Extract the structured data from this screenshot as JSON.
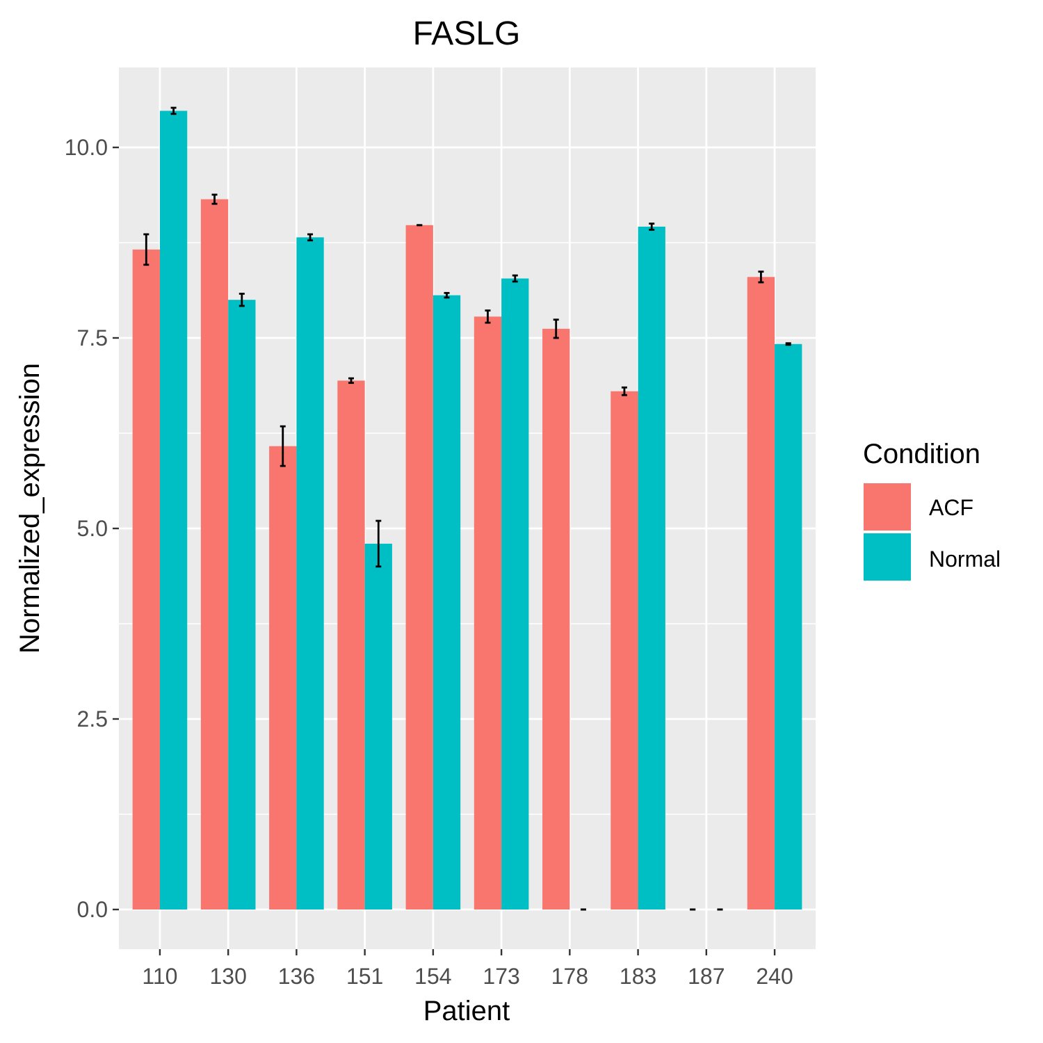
{
  "chart_data": {
    "type": "bar",
    "title": "FASLG",
    "xlabel": "Patient",
    "ylabel": "Normalized_expression",
    "categories": [
      "110",
      "130",
      "136",
      "151",
      "154",
      "173",
      "178",
      "183",
      "187",
      "240"
    ],
    "series": [
      {
        "name": "ACF",
        "color": "#F8766D",
        "values": [
          8.66,
          9.32,
          6.08,
          6.94,
          8.98,
          7.78,
          7.62,
          6.8,
          0.0,
          8.3
        ],
        "errors": [
          0.2,
          0.06,
          0.26,
          0.03,
          0.0,
          0.08,
          0.12,
          0.05,
          0.0,
          0.07
        ]
      },
      {
        "name": "Normal",
        "color": "#00BFC4",
        "values": [
          10.48,
          8.0,
          8.82,
          4.8,
          8.06,
          8.28,
          0.0,
          8.96,
          0.0,
          7.42
        ],
        "errors": [
          0.04,
          0.08,
          0.04,
          0.3,
          0.03,
          0.04,
          0.0,
          0.04,
          0.0,
          0.01
        ]
      }
    ],
    "yticks": [
      "0.0",
      "2.5",
      "5.0",
      "7.5",
      "10.0"
    ],
    "ylim": [
      -0.5,
      11.05
    ],
    "legend": {
      "title": "Condition",
      "position": "right"
    },
    "grid": true,
    "background": "#EBEBEB"
  }
}
